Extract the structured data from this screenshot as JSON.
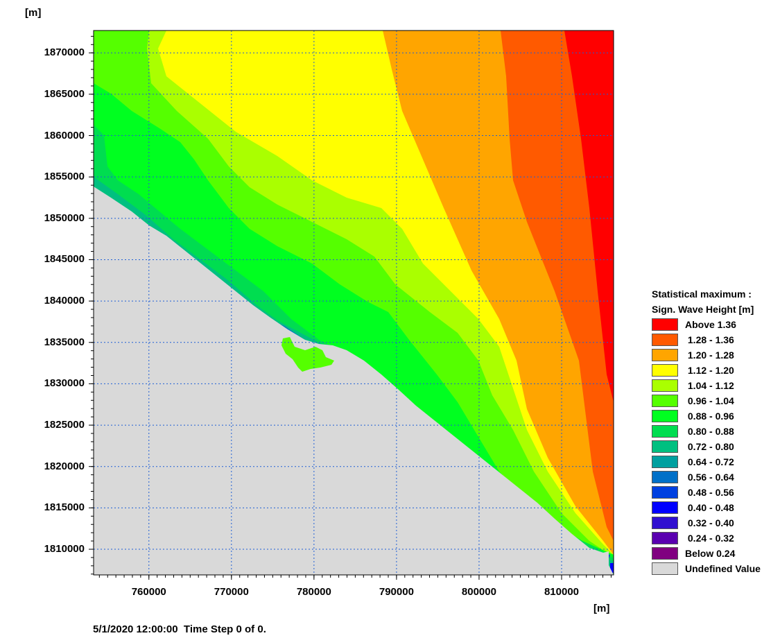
{
  "header": {
    "y_unit": "[m]"
  },
  "footer": {
    "x_unit": "[m]",
    "status": "5/1/2020 12:00:00  Time Step 0 of 0."
  },
  "chart_data": {
    "type": "heatmap",
    "title": "",
    "xlabel": "[m]",
    "ylabel": "[m]",
    "xlim": [
      753300,
      816300
    ],
    "ylim": [
      1806900,
      1872700
    ],
    "x_ticks": [
      "760000",
      "770000",
      "780000",
      "790000",
      "800000",
      "810000"
    ],
    "y_ticks": [
      "1870000",
      "1865000",
      "1860000",
      "1855000",
      "1850000",
      "1845000",
      "1840000",
      "1835000",
      "1830000",
      "1825000",
      "1820000",
      "1815000",
      "1810000"
    ],
    "grid": true,
    "legend_position": "right",
    "legend": {
      "title_line1": "Statistical maximum :",
      "title_line2": "Sign. Wave Height [m]",
      "items": [
        {
          "label": "Above 1.36",
          "color": "#ff0000"
        },
        {
          "label": " 1.28 - 1.36",
          "color": "#ff5a00"
        },
        {
          "label": " 1.20 - 1.28",
          "color": "#ffa500"
        },
        {
          "label": " 1.12 - 1.20",
          "color": "#ffff00"
        },
        {
          "label": " 1.04 - 1.12",
          "color": "#aaff00"
        },
        {
          "label": " 0.96 - 1.04",
          "color": "#55ff00"
        },
        {
          "label": " 0.88 - 0.96",
          "color": "#00ff20"
        },
        {
          "label": " 0.80 - 0.88",
          "color": "#00dd50"
        },
        {
          "label": " 0.72 - 0.80",
          "color": "#00c080"
        },
        {
          "label": " 0.64 - 0.72",
          "color": "#00a0a0"
        },
        {
          "label": " 0.56 - 0.64",
          "color": "#0070c8"
        },
        {
          "label": " 0.48 - 0.56",
          "color": "#0040e0"
        },
        {
          "label": " 0.40 - 0.48",
          "color": "#0000ff"
        },
        {
          "label": " 0.32 - 0.40",
          "color": "#3010d0"
        },
        {
          "label": " 0.24 - 0.32",
          "color": "#5a00b0"
        },
        {
          "label": "Below 0.24",
          "color": "#800080"
        },
        {
          "label": "Undefined Value",
          "color": "#d9d9d9"
        }
      ]
    }
  }
}
